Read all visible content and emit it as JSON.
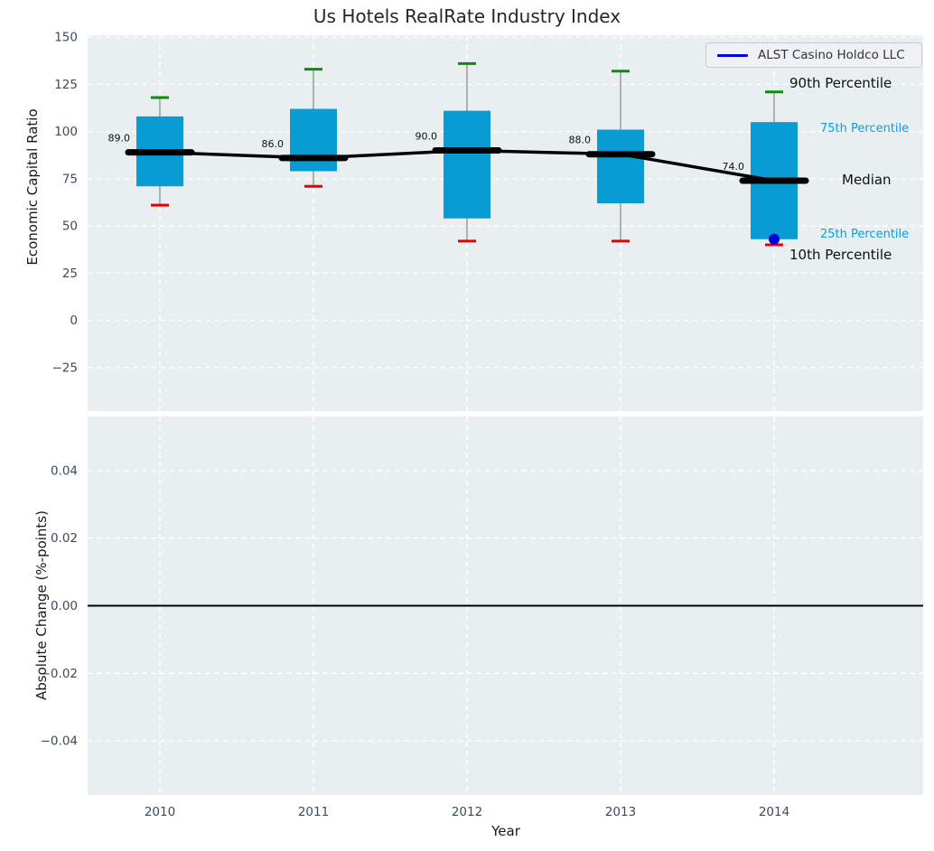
{
  "title": "Us Hotels RealRate Industry Index",
  "legend": {
    "label": "ALST Casino Holdco LLC"
  },
  "annotations": {
    "p90": "90th Percentile",
    "p75": "75th Percentile",
    "median": "Median",
    "p25": "25th Percentile",
    "p10": "10th Percentile"
  },
  "colors": {
    "background": "#ffffff",
    "panel_bg": "#e9eef1",
    "grid": "#ffffff",
    "box_fill": "#089cd3",
    "whisker": "#888888",
    "cap_top": "#0f8a0f",
    "cap_bottom": "#e80000",
    "median_line": "#000000",
    "company_line": "#0000e0",
    "tick_label": "#3d4a5d",
    "annotation_blue": "#0d9fd8",
    "zero_line": "#000000"
  },
  "chart_data": [
    {
      "type": "boxplot",
      "title": "Us Hotels RealRate Industry Index",
      "xlabel": "",
      "ylabel": "Economic Capital Ratio",
      "ylim": [
        -48,
        151
      ],
      "yticks": [
        150,
        125,
        100,
        75,
        50,
        25,
        0,
        -25
      ],
      "ytick_labels": [
        "150",
        "125",
        "100",
        "75",
        "50",
        "25",
        "0",
        "−25"
      ],
      "categories": [
        "2010",
        "2011",
        "2012",
        "2013",
        "2014"
      ],
      "grid": "dashed-white-on-gray",
      "legend_position": "upper right",
      "legend_entries": [
        "ALST Casino Holdco LLC"
      ],
      "boxes": [
        {
          "year": "2010",
          "p10": 61,
          "p25": 71,
          "median": 89,
          "p75": 108,
          "p90": 118
        },
        {
          "year": "2011",
          "p10": 71,
          "p25": 79,
          "median": 86,
          "p75": 112,
          "p90": 133
        },
        {
          "year": "2012",
          "p10": 42,
          "p25": 54,
          "median": 90,
          "p75": 111,
          "p90": 136
        },
        {
          "year": "2013",
          "p10": 42,
          "p25": 62,
          "median": 88,
          "p75": 101,
          "p90": 132
        },
        {
          "year": "2014",
          "p10": 40,
          "p25": 43,
          "median": 74,
          "p75": 105,
          "p90": 121
        }
      ],
      "median_line": [
        89,
        86,
        90,
        88,
        74
      ],
      "median_labels": [
        "89.0",
        "86.0",
        "90.0",
        "88.0",
        "74.0"
      ],
      "company_series": {
        "name": "ALST Casino Holdco LLC",
        "points": [
          {
            "year": "2014",
            "value": 43
          }
        ]
      }
    },
    {
      "type": "line",
      "xlabel": "Year",
      "ylabel": "Absolute Change (%-points)",
      "ylim": [
        -0.056,
        0.056
      ],
      "yticks": [
        0.04,
        0.02,
        0.0,
        -0.02,
        -0.04
      ],
      "ytick_labels": [
        "0.04",
        "0.02",
        "0.00",
        "−0.02",
        "−0.04"
      ],
      "categories": [
        "2010",
        "2011",
        "2012",
        "2013",
        "2014"
      ],
      "zero_line": true,
      "series": []
    }
  ]
}
